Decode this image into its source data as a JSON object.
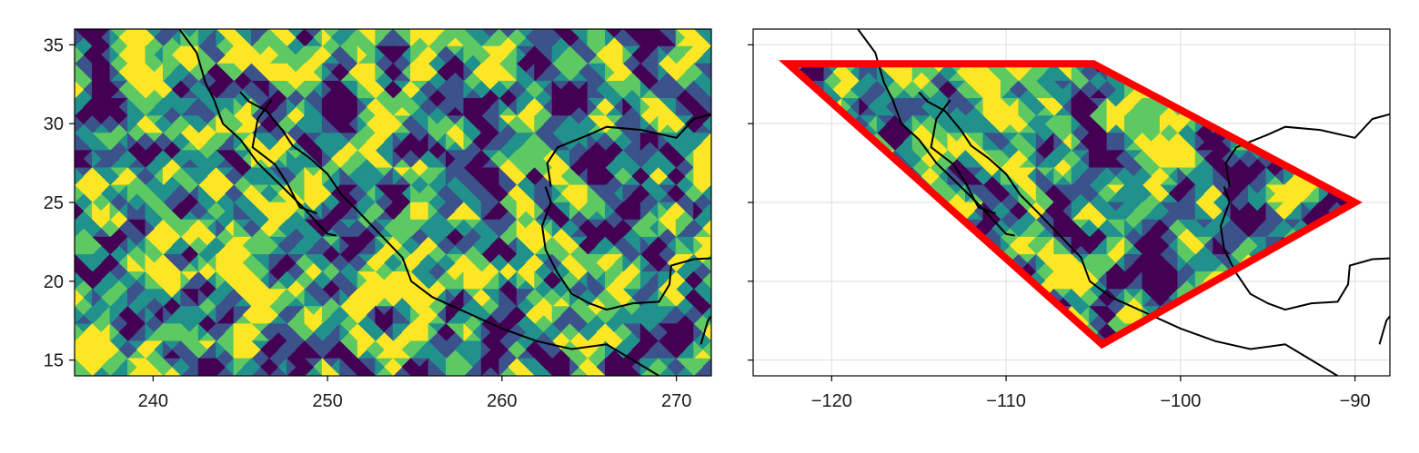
{
  "chart_data": [
    {
      "type": "heatmap",
      "title": "",
      "xlabel": "",
      "ylabel": "",
      "xlim": [
        235.5,
        272
      ],
      "ylim": [
        14,
        36
      ],
      "xticks": [
        240,
        250,
        260,
        270
      ],
      "xtick_labels": [
        "240",
        "250",
        "260",
        "270"
      ],
      "yticks": [
        15,
        20,
        25,
        30,
        35
      ],
      "ytick_labels": [
        "15",
        "20",
        "25",
        "30",
        "35"
      ],
      "grid": false,
      "colormap": "viridis",
      "colormap_stops": [
        "#440154",
        "#3b528b",
        "#21918c",
        "#5ec962",
        "#fde725"
      ],
      "field": "random filled contours",
      "coastline_color": "#000000"
    },
    {
      "type": "heatmap",
      "title": "",
      "xlabel": "",
      "ylabel": "",
      "xlim": [
        -124.5,
        -88
      ],
      "ylim": [
        14,
        36
      ],
      "xticks": [
        -120,
        -110,
        -100,
        -90
      ],
      "xtick_labels": [
        "−120",
        "−110",
        "−100",
        "−90"
      ],
      "yticks": [
        15,
        20,
        25,
        30,
        35
      ],
      "ytick_labels": [
        "",
        "",
        "",
        "",
        ""
      ],
      "grid": true,
      "colormap": "viridis",
      "colormap_stops": [
        "#440154",
        "#3b528b",
        "#21918c",
        "#5ec962",
        "#fde725"
      ],
      "field": "random filled contours masked to polygon",
      "coastline_color": "#000000",
      "polygon": {
        "color": "#ff0000",
        "vertices": [
          [
            -122.5,
            33.8
          ],
          [
            -105,
            33.8
          ],
          [
            -90,
            25
          ],
          [
            -104.5,
            16
          ],
          [
            -122.5,
            33.8
          ]
        ]
      }
    }
  ]
}
